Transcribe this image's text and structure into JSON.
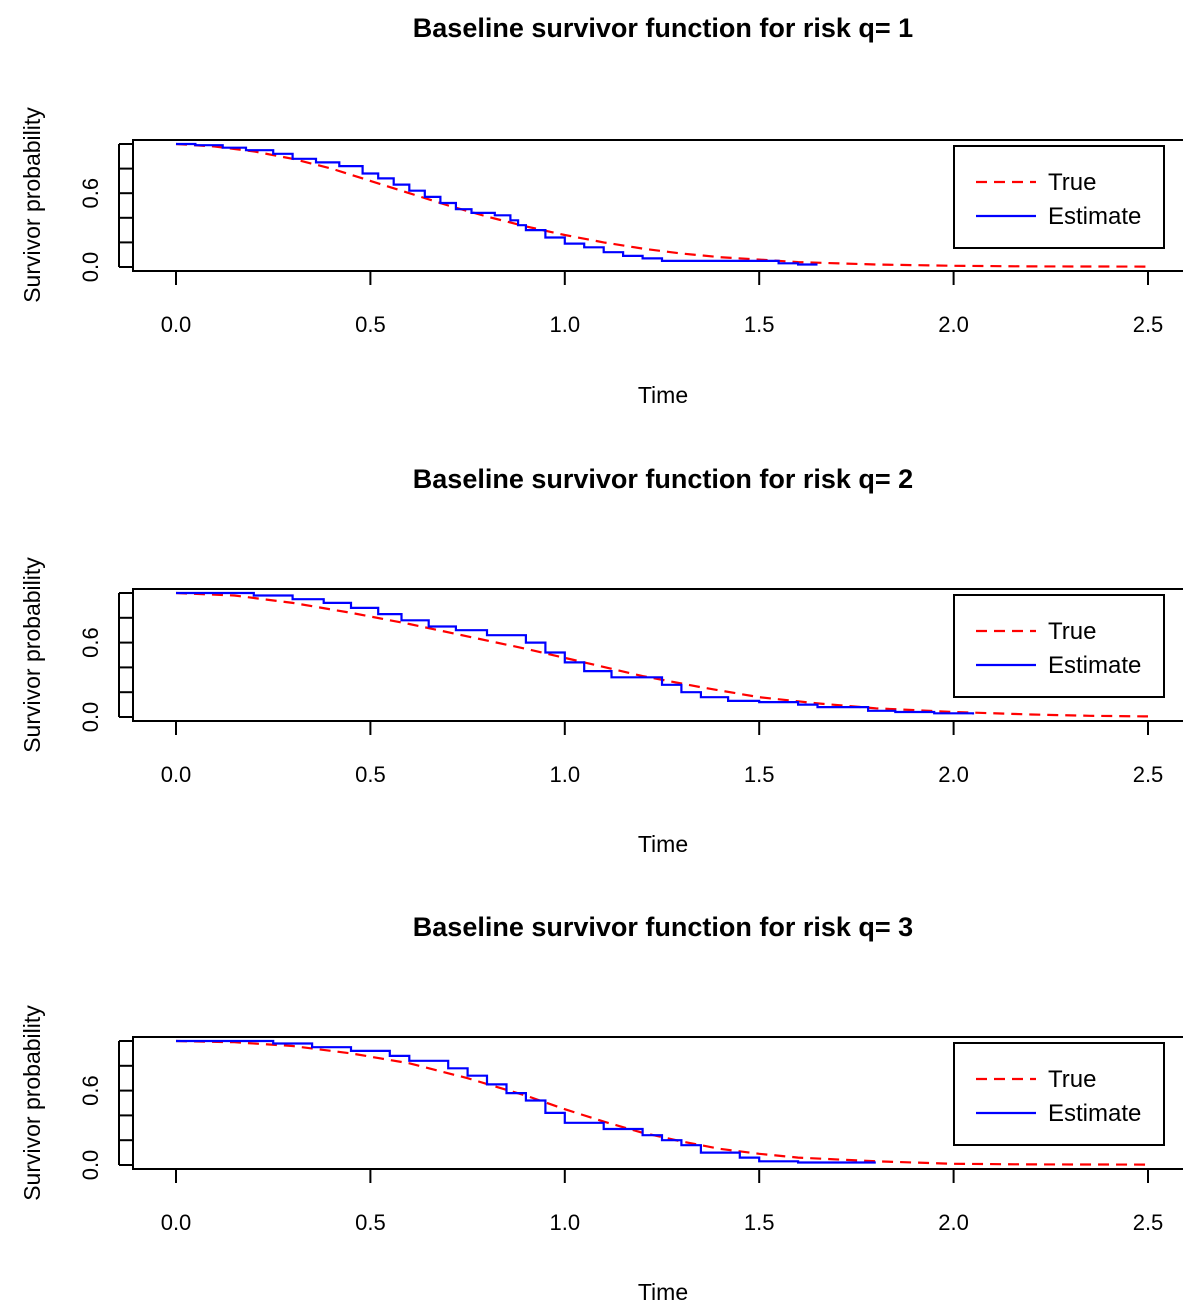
{
  "chart_data": [
    {
      "type": "line",
      "title": "Baseline survivor function for risk q= 1",
      "xlabel": "Time",
      "ylabel": "Survivor probability",
      "xlim": [
        0,
        2.5
      ],
      "ylim": [
        0,
        1
      ],
      "xticks": [
        "0.0",
        "0.5",
        "1.0",
        "1.5",
        "2.0",
        "2.5"
      ],
      "yticks": [
        "0.0",
        "0.6"
      ],
      "legend_position": "top-right",
      "series": [
        {
          "name": "True",
          "color": "#ff0000",
          "style": "dashed",
          "x": [
            0,
            0.1,
            0.2,
            0.3,
            0.4,
            0.5,
            0.6,
            0.7,
            0.8,
            0.9,
            1.0,
            1.1,
            1.2,
            1.3,
            1.4,
            1.5,
            1.6,
            1.8,
            2.0,
            2.2,
            2.5
          ],
          "y": [
            1.0,
            0.98,
            0.94,
            0.88,
            0.8,
            0.7,
            0.6,
            0.5,
            0.41,
            0.33,
            0.26,
            0.2,
            0.15,
            0.11,
            0.08,
            0.06,
            0.04,
            0.02,
            0.01,
            0.005,
            0.003
          ]
        },
        {
          "name": "Estimate",
          "color": "#0000ff",
          "style": "solid",
          "step": true,
          "x": [
            0,
            0.05,
            0.12,
            0.18,
            0.25,
            0.3,
            0.36,
            0.42,
            0.48,
            0.52,
            0.56,
            0.6,
            0.64,
            0.68,
            0.72,
            0.76,
            0.82,
            0.86,
            0.88,
            0.9,
            0.95,
            1.0,
            1.05,
            1.1,
            1.15,
            1.2,
            1.25,
            1.35,
            1.45,
            1.55,
            1.6,
            1.65
          ],
          "y": [
            1.0,
            0.99,
            0.97,
            0.95,
            0.92,
            0.88,
            0.85,
            0.82,
            0.76,
            0.72,
            0.67,
            0.62,
            0.57,
            0.52,
            0.47,
            0.44,
            0.42,
            0.38,
            0.34,
            0.3,
            0.24,
            0.19,
            0.16,
            0.12,
            0.09,
            0.07,
            0.05,
            0.05,
            0.05,
            0.03,
            0.02,
            0.02
          ]
        }
      ]
    },
    {
      "type": "line",
      "title": "Baseline survivor function for risk q= 2",
      "xlabel": "Time",
      "ylabel": "Survivor probability",
      "xlim": [
        0,
        2.5
      ],
      "ylim": [
        0,
        1
      ],
      "xticks": [
        "0.0",
        "0.5",
        "1.0",
        "1.5",
        "2.0",
        "2.5"
      ],
      "yticks": [
        "0.0",
        "0.6"
      ],
      "legend_position": "top-right",
      "series": [
        {
          "name": "True",
          "color": "#ff0000",
          "style": "dashed",
          "x": [
            0,
            0.15,
            0.3,
            0.45,
            0.6,
            0.75,
            0.9,
            1.05,
            1.2,
            1.35,
            1.5,
            1.65,
            1.8,
            2.0,
            2.2,
            2.35,
            2.5
          ],
          "y": [
            1.0,
            0.98,
            0.92,
            0.84,
            0.75,
            0.65,
            0.55,
            0.44,
            0.33,
            0.24,
            0.16,
            0.11,
            0.07,
            0.04,
            0.02,
            0.01,
            0.005
          ]
        },
        {
          "name": "Estimate",
          "color": "#0000ff",
          "style": "solid",
          "step": true,
          "x": [
            0,
            0.2,
            0.3,
            0.38,
            0.45,
            0.52,
            0.58,
            0.65,
            0.72,
            0.8,
            0.9,
            0.95,
            1.0,
            1.05,
            1.12,
            1.25,
            1.3,
            1.35,
            1.42,
            1.5,
            1.6,
            1.65,
            1.78,
            1.85,
            1.95,
            2.05
          ],
          "y": [
            1.0,
            0.98,
            0.95,
            0.92,
            0.88,
            0.83,
            0.78,
            0.73,
            0.7,
            0.66,
            0.6,
            0.52,
            0.44,
            0.37,
            0.32,
            0.26,
            0.2,
            0.16,
            0.13,
            0.12,
            0.1,
            0.08,
            0.05,
            0.04,
            0.03,
            0.02
          ]
        }
      ]
    },
    {
      "type": "line",
      "title": "Baseline survivor function for risk q= 3",
      "xlabel": "Time",
      "ylabel": "Survivor probability",
      "xlim": [
        0,
        2.5
      ],
      "ylim": [
        0,
        1
      ],
      "xticks": [
        "0.0",
        "0.5",
        "1.0",
        "1.5",
        "2.0",
        "2.5"
      ],
      "yticks": [
        "0.0",
        "0.6"
      ],
      "legend_position": "top-right",
      "series": [
        {
          "name": "True",
          "color": "#ff0000",
          "style": "dashed",
          "x": [
            0,
            0.15,
            0.3,
            0.45,
            0.6,
            0.75,
            0.9,
            1.0,
            1.1,
            1.2,
            1.3,
            1.4,
            1.5,
            1.6,
            1.8,
            2.0,
            2.2,
            2.5
          ],
          "y": [
            1.0,
            0.99,
            0.96,
            0.9,
            0.82,
            0.7,
            0.56,
            0.45,
            0.35,
            0.26,
            0.19,
            0.13,
            0.09,
            0.06,
            0.03,
            0.01,
            0.005,
            0.003
          ]
        },
        {
          "name": "Estimate",
          "color": "#0000ff",
          "style": "solid",
          "step": true,
          "x": [
            0,
            0.25,
            0.35,
            0.45,
            0.55,
            0.6,
            0.7,
            0.75,
            0.8,
            0.85,
            0.9,
            0.95,
            1.0,
            1.1,
            1.2,
            1.25,
            1.3,
            1.35,
            1.45,
            1.5,
            1.6,
            1.7,
            1.8
          ],
          "y": [
            1.0,
            0.98,
            0.95,
            0.92,
            0.88,
            0.84,
            0.78,
            0.72,
            0.65,
            0.58,
            0.52,
            0.42,
            0.34,
            0.29,
            0.24,
            0.2,
            0.16,
            0.1,
            0.06,
            0.03,
            0.02,
            0.02,
            0.02
          ]
        }
      ]
    }
  ]
}
